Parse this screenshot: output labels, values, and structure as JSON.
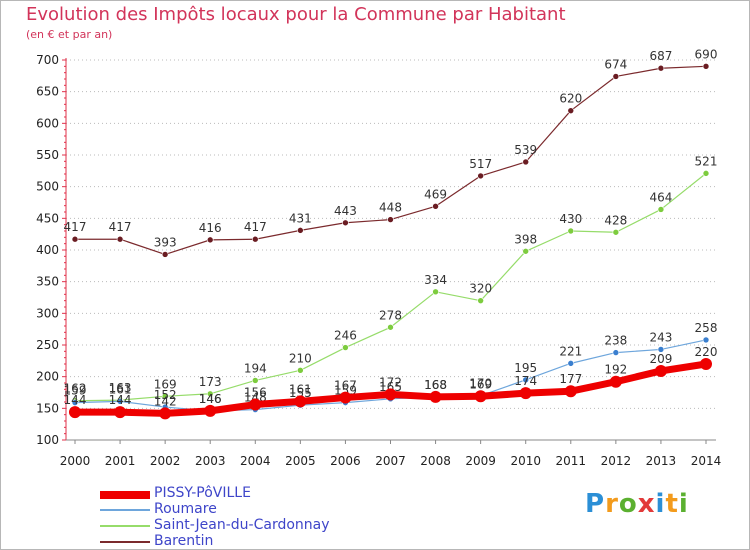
{
  "title": "Evolution des Impôts locaux pour la Commune par Habitant",
  "subtitle": "(en € et par an)",
  "logo": {
    "text": "Proxiti",
    "colors": [
      "#2b8fd6",
      "#f39b1c",
      "#5bb030",
      "#e23a3a",
      "#2b8fd6",
      "#f39b1c",
      "#5bb030"
    ]
  },
  "colors": {
    "title": "#d2345a",
    "axis_red": "#e0304a",
    "grid": "#bbbbbb"
  },
  "chart_data": {
    "type": "line",
    "title": "Evolution des Impôts locaux pour la Commune par Habitant",
    "subtitle": "(en € et par an)",
    "x": [
      "2000",
      "2001",
      "2002",
      "2003",
      "2004",
      "2005",
      "2006",
      "2007",
      "2008",
      "2009",
      "2010",
      "2011",
      "2012",
      "2013",
      "2014"
    ],
    "ylim": [
      100,
      700
    ],
    "yticks": [
      "100",
      "150",
      "200",
      "250",
      "300",
      "350",
      "400",
      "450",
      "500",
      "550",
      "600",
      "650",
      "700"
    ],
    "grid": "horizontal dotted",
    "legend_position": "bottom-left",
    "series": [
      {
        "name": "Barentin",
        "color": "#7b2a2d",
        "marker": "#6a1c22",
        "values": [
          417,
          417,
          393,
          416,
          417,
          431,
          443,
          448,
          469,
          517,
          539,
          620,
          674,
          687,
          690
        ],
        "labels": [
          "417",
          "417",
          "393",
          "416",
          "417",
          "431",
          "443",
          "448",
          "469",
          "517",
          "539",
          "620",
          "674",
          "687",
          "690"
        ]
      },
      {
        "name": "Saint-Jean-du-Cardonnay",
        "color": "#96dc6a",
        "marker": "#7dcc3e",
        "values": [
          162,
          163,
          169,
          173,
          194,
          210,
          246,
          278,
          334,
          320,
          398,
          430,
          428,
          464,
          521
        ],
        "labels": [
          "162",
          "163",
          "169",
          "173",
          "194",
          "210",
          "246",
          "278",
          "334",
          "320",
          "398",
          "430",
          "428",
          "464",
          "521"
        ]
      },
      {
        "name": "Roumare",
        "color": "#6ea6dc",
        "marker": "#3a7fcf",
        "values": [
          159,
          161,
          152,
          146,
          148,
          155,
          159,
          165,
          168,
          170,
          195,
          221,
          238,
          243,
          258
        ],
        "labels": [
          "159",
          "161",
          "152",
          "146",
          "148",
          "155",
          "159",
          "165",
          "168",
          "170",
          "195",
          "221",
          "238",
          "243",
          "258"
        ]
      },
      {
        "name": "PISSY-PôVILLE",
        "color": "#ee0000",
        "marker": "#ee0000",
        "values": [
          144,
          144,
          142,
          146,
          156,
          161,
          167,
          172,
          168,
          169,
          174,
          177,
          192,
          209,
          220
        ],
        "labels": [
          "144",
          "144",
          "142",
          "146",
          "156",
          "161",
          "167",
          "172",
          "168",
          "169",
          "174",
          "177",
          "192",
          "209",
          "220"
        ]
      }
    ],
    "legend": [
      "PISSY-PôVILLE",
      "Roumare",
      "Saint-Jean-du-Cardonnay",
      "Barentin"
    ]
  }
}
